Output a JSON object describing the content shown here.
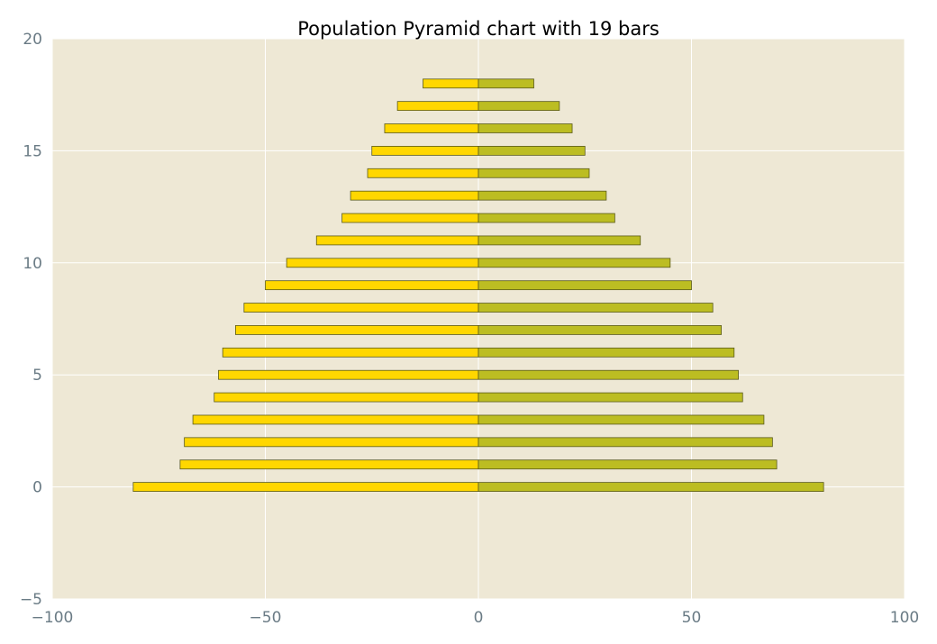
{
  "chart_data": {
    "type": "bar",
    "orientation": "horizontal",
    "title": "Population Pyramid chart with 19 bars",
    "xlabel": "",
    "ylabel": "",
    "xlim": [
      -100,
      100
    ],
    "ylim": [
      -5,
      20
    ],
    "xticks": [
      -100,
      -50,
      0,
      50,
      100
    ],
    "xtick_labels": [
      "−100",
      "−50",
      "0",
      "50",
      "100"
    ],
    "yticks": [
      -5,
      0,
      5,
      10,
      15,
      20
    ],
    "ytick_labels": [
      "−5",
      "0",
      "5",
      "10",
      "15",
      "20"
    ],
    "grid": true,
    "legend": "none",
    "categories": [
      0,
      1,
      2,
      3,
      4,
      5,
      6,
      7,
      8,
      9,
      10,
      11,
      12,
      13,
      14,
      15,
      16,
      17,
      18
    ],
    "series": [
      {
        "color": "#ffd700",
        "values": [
          -81,
          -70,
          -69,
          -67,
          -62,
          -61,
          -60,
          -57,
          -55,
          -50,
          -45,
          -38,
          -32,
          -30,
          -26,
          -25,
          -22,
          -19,
          -13
        ]
      },
      {
        "color": "#bcbd22",
        "values": [
          81,
          70,
          69,
          67,
          62,
          61,
          60,
          57,
          55,
          50,
          45,
          38,
          32,
          30,
          26,
          25,
          22,
          19,
          13
        ]
      }
    ],
    "plot_background": "#eee8d5"
  }
}
